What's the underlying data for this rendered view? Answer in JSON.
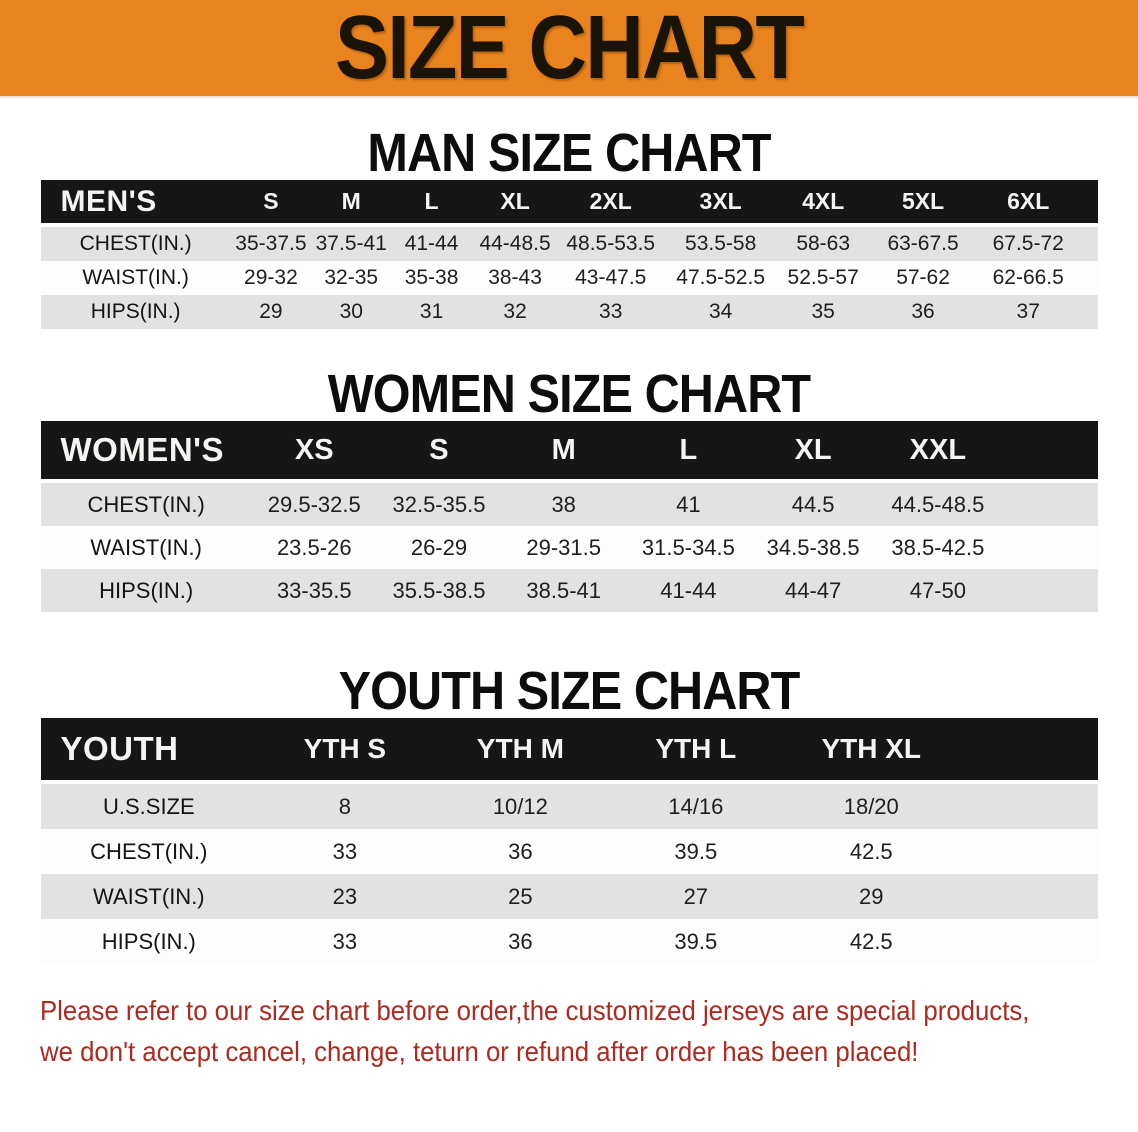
{
  "banner": {
    "title": "SIZE CHART"
  },
  "colors": {
    "banner_bg": "#E8831E",
    "table_header_bg": "#161616",
    "row_stripe": "#E2E2E2",
    "disclaimer_text": "#AF291F"
  },
  "chart_data": [
    {
      "type": "table",
      "title": "MAN SIZE CHART",
      "corner_label": "MEN'S",
      "columns": [
        "S",
        "M",
        "L",
        "XL",
        "2XL",
        "3XL",
        "4XL",
        "5XL",
        "6XL"
      ],
      "rows": [
        {
          "label": "CHEST(IN.)",
          "values": [
            "35-37.5",
            "37.5-41",
            "41-44",
            "44-48.5",
            "48.5-53.5",
            "53.5-58",
            "58-63",
            "63-67.5",
            "67.5-72"
          ]
        },
        {
          "label": "WAIST(IN.)",
          "values": [
            "29-32",
            "32-35",
            "35-38",
            "38-43",
            "43-47.5",
            "47.5-52.5",
            "52.5-57",
            "57-62",
            "62-66.5"
          ]
        },
        {
          "label": "HIPS(IN.)",
          "values": [
            "29",
            "30",
            "31",
            "32",
            "33",
            "34",
            "35",
            "36",
            "37"
          ]
        }
      ]
    },
    {
      "type": "table",
      "title": "WOMEN SIZE CHART",
      "corner_label": "WOMEN'S",
      "columns": [
        "XS",
        "S",
        "M",
        "L",
        "XL",
        "XXL"
      ],
      "rows": [
        {
          "label": "CHEST(IN.)",
          "values": [
            "29.5-32.5",
            "32.5-35.5",
            "38",
            "41",
            "44.5",
            "44.5-48.5"
          ]
        },
        {
          "label": "WAIST(IN.)",
          "values": [
            "23.5-26",
            "26-29",
            "29-31.5",
            "31.5-34.5",
            "34.5-38.5",
            "38.5-42.5"
          ]
        },
        {
          "label": "HIPS(IN.)",
          "values": [
            "33-35.5",
            "35.5-38.5",
            "38.5-41",
            "41-44",
            "44-47",
            "47-50"
          ]
        }
      ]
    },
    {
      "type": "table",
      "title": "YOUTH SIZE CHART",
      "corner_label": "YOUTH",
      "columns": [
        "YTH S",
        "YTH M",
        "YTH L",
        "YTH XL"
      ],
      "rows": [
        {
          "label": "U.S.SIZE",
          "values": [
            "8",
            "10/12",
            "14/16",
            "18/20"
          ]
        },
        {
          "label": "CHEST(IN.)",
          "values": [
            "33",
            "36",
            "39.5",
            "42.5"
          ]
        },
        {
          "label": "WAIST(IN.)",
          "values": [
            "23",
            "25",
            "27",
            "29"
          ]
        },
        {
          "label": "HIPS(IN.)",
          "values": [
            "33",
            "36",
            "39.5",
            "42.5"
          ]
        }
      ]
    }
  ],
  "disclaimer": {
    "line1": "Please refer to our size chart before order,the customized jerseys are special products,",
    "line2": "we don't accept cancel, change, teturn or refund after order has been placed!"
  }
}
